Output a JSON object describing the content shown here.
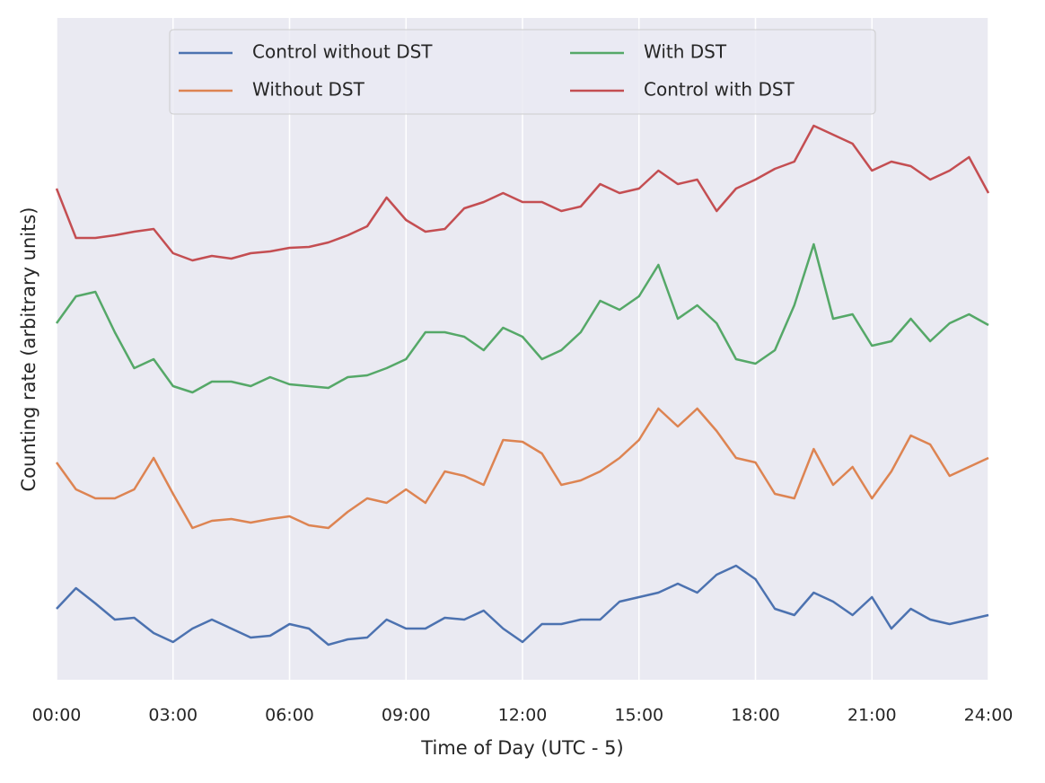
{
  "chart_data": {
    "type": "line",
    "xlabel": "Time of Day (UTC - 5)",
    "ylabel": "Counting rate (arbitrary units)",
    "x": [
      0,
      0.5,
      1,
      1.5,
      2,
      2.5,
      3,
      3.5,
      4,
      4.5,
      5,
      5.5,
      6,
      6.5,
      7,
      7.5,
      8,
      8.5,
      9,
      9.5,
      10,
      10.5,
      11,
      11.5,
      12,
      12.5,
      13,
      13.5,
      14,
      14.5,
      15,
      15.5,
      16,
      16.5,
      17,
      17.5,
      18,
      18.5,
      19,
      19.5,
      20,
      20.5,
      21,
      21.5,
      22,
      22.5,
      23,
      23.5,
      24
    ],
    "xlim": [
      0,
      24
    ],
    "xticks": [
      {
        "value": 0,
        "label": "00:00"
      },
      {
        "value": 3,
        "label": "03:00"
      },
      {
        "value": 6,
        "label": "06:00"
      },
      {
        "value": 9,
        "label": "09:00"
      },
      {
        "value": 12,
        "label": "12:00"
      },
      {
        "value": 15,
        "label": "15:00"
      },
      {
        "value": 18,
        "label": "18:00"
      },
      {
        "value": 21,
        "label": "21:00"
      },
      {
        "value": 24,
        "label": "24:00"
      }
    ],
    "ylim": [
      0,
      737
    ],
    "grid": true,
    "legend": "upper center",
    "series": [
      {
        "name": "Control without DST",
        "color": "#4c72b0",
        "values": [
          79,
          102,
          85,
          67,
          69,
          52,
          42,
          57,
          67,
          57,
          47,
          49,
          62,
          57,
          39,
          45,
          47,
          67,
          57,
          57,
          69,
          67,
          77,
          57,
          42,
          62,
          62,
          67,
          67,
          87,
          92,
          97,
          107,
          97,
          117,
          127,
          112,
          79,
          72,
          97,
          87,
          72,
          92,
          57,
          79,
          67,
          62,
          67,
          72
        ]
      },
      {
        "name": "Without DST",
        "color": "#dd8452",
        "values": [
          242,
          212,
          202,
          202,
          212,
          247,
          207,
          169,
          177,
          179,
          175,
          179,
          182,
          172,
          169,
          187,
          202,
          197,
          212,
          197,
          232,
          227,
          217,
          267,
          265,
          252,
          217,
          222,
          232,
          247,
          267,
          302,
          282,
          302,
          277,
          247,
          242,
          207,
          202,
          257,
          217,
          237,
          202,
          232,
          272,
          262,
          227,
          237,
          247
        ]
      },
      {
        "name": "With DST",
        "color": "#55a868",
        "values": [
          397,
          427,
          432,
          387,
          347,
          357,
          327,
          320,
          332,
          332,
          327,
          337,
          329,
          327,
          325,
          337,
          339,
          347,
          357,
          387,
          387,
          382,
          367,
          392,
          382,
          357,
          367,
          387,
          422,
          412,
          427,
          462,
          402,
          417,
          397,
          357,
          352,
          367,
          417,
          485,
          402,
          407,
          372,
          377,
          402,
          377,
          397,
          407,
          395
        ]
      },
      {
        "name": "Control with DST",
        "color": "#c44e52",
        "values": [
          547,
          492,
          492,
          495,
          499,
          502,
          475,
          467,
          472,
          469,
          475,
          477,
          481,
          482,
          487,
          495,
          505,
          537,
          512,
          499,
          502,
          525,
          532,
          542,
          532,
          532,
          522,
          527,
          552,
          542,
          547,
          567,
          552,
          557,
          522,
          547,
          557,
          569,
          577,
          617,
          607,
          597,
          567,
          577,
          572,
          557,
          567,
          582,
          542
        ]
      }
    ]
  }
}
